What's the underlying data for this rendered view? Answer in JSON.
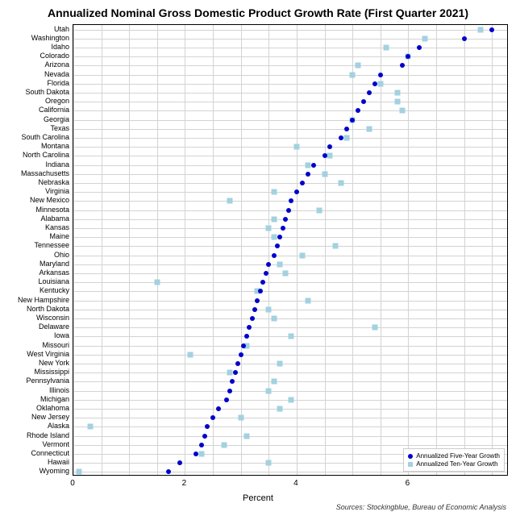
{
  "chart": {
    "title": "Annualized Nominal Gross Domestic Product Growth Rate (First Quarter 2021)",
    "xlabel": "Percent",
    "xlim": [
      0,
      7.8
    ],
    "xticks": [
      0,
      2,
      4,
      6
    ],
    "xtick_labels": [
      "0",
      "2",
      "4",
      "6"
    ],
    "xminor": [
      0,
      0.5,
      1,
      1.5,
      2,
      2.5,
      3,
      3.5,
      4,
      4.5,
      5,
      5.5,
      6,
      6.5,
      7,
      7.5
    ],
    "background_color": "#ffffff",
    "grid_color": "#d3d3d3",
    "border_color": "#000000",
    "five_year_color": "#0000cc",
    "ten_year_color": "#a3d1e0",
    "marker_five_size": 6,
    "marker_ten_size": 7,
    "legend": {
      "five": "Annualized Five-Year Growth",
      "ten": "Annualized Ten-Year Growth"
    },
    "sources": "Sources: Stockingblue, Bureau of Economic Analysis",
    "states": [
      {
        "name": "Utah",
        "five": 7.5,
        "ten": 7.3
      },
      {
        "name": "Washington",
        "five": 7.0,
        "ten": 6.3
      },
      {
        "name": "Idaho",
        "five": 6.2,
        "ten": 5.6
      },
      {
        "name": "Colorado",
        "five": 6.0,
        "ten": 6.0
      },
      {
        "name": "Arizona",
        "five": 5.9,
        "ten": 5.1
      },
      {
        "name": "Nevada",
        "five": 5.5,
        "ten": 5.0
      },
      {
        "name": "Florida",
        "five": 5.4,
        "ten": 5.5
      },
      {
        "name": "South Dakota",
        "five": 5.3,
        "ten": 5.8
      },
      {
        "name": "Oregon",
        "five": 5.2,
        "ten": 5.8
      },
      {
        "name": "California",
        "five": 5.1,
        "ten": 5.9
      },
      {
        "name": "Georgia",
        "five": 5.0,
        "ten": 5.0
      },
      {
        "name": "Texas",
        "five": 4.9,
        "ten": 5.3
      },
      {
        "name": "South Carolina",
        "five": 4.8,
        "ten": 4.9
      },
      {
        "name": "Montana",
        "five": 4.6,
        "ten": 4.0
      },
      {
        "name": "North Carolina",
        "five": 4.5,
        "ten": 4.6
      },
      {
        "name": "Indiana",
        "five": 4.3,
        "ten": 4.2
      },
      {
        "name": "Massachusetts",
        "five": 4.2,
        "ten": 4.5
      },
      {
        "name": "Nebraska",
        "five": 4.1,
        "ten": 4.8
      },
      {
        "name": "Virginia",
        "five": 4.0,
        "ten": 3.6
      },
      {
        "name": "New Mexico",
        "five": 3.9,
        "ten": 2.8
      },
      {
        "name": "Minnesota",
        "five": 3.85,
        "ten": 4.4
      },
      {
        "name": "Alabama",
        "five": 3.8,
        "ten": 3.6
      },
      {
        "name": "Kansas",
        "five": 3.75,
        "ten": 3.5
      },
      {
        "name": "Maine",
        "five": 3.7,
        "ten": 3.6
      },
      {
        "name": "Tennessee",
        "five": 3.65,
        "ten": 4.7
      },
      {
        "name": "Ohio",
        "five": 3.6,
        "ten": 4.1
      },
      {
        "name": "Maryland",
        "five": 3.5,
        "ten": 3.7
      },
      {
        "name": "Arkansas",
        "five": 3.45,
        "ten": 3.8
      },
      {
        "name": "Louisiana",
        "five": 3.4,
        "ten": 1.5
      },
      {
        "name": "Kentucky",
        "five": 3.35,
        "ten": 3.3
      },
      {
        "name": "New Hampshire",
        "five": 3.3,
        "ten": 4.2
      },
      {
        "name": "North Dakota",
        "five": 3.25,
        "ten": 3.5
      },
      {
        "name": "Wisconsin",
        "five": 3.2,
        "ten": 3.6
      },
      {
        "name": "Delaware",
        "five": 3.15,
        "ten": 5.4
      },
      {
        "name": "Iowa",
        "five": 3.1,
        "ten": 3.9
      },
      {
        "name": "Missouri",
        "five": 3.05,
        "ten": 3.1
      },
      {
        "name": "West Virginia",
        "five": 3.0,
        "ten": 2.1
      },
      {
        "name": "New York",
        "five": 2.95,
        "ten": 3.7
      },
      {
        "name": "Mississippi",
        "five": 2.9,
        "ten": 2.8
      },
      {
        "name": "Pennsylvania",
        "five": 2.85,
        "ten": 3.6
      },
      {
        "name": "Illinois",
        "five": 2.8,
        "ten": 3.5
      },
      {
        "name": "Michigan",
        "five": 2.75,
        "ten": 3.9
      },
      {
        "name": "Oklahoma",
        "five": 2.6,
        "ten": 3.7
      },
      {
        "name": "New Jersey",
        "five": 2.5,
        "ten": 3.0
      },
      {
        "name": "Alaska",
        "five": 2.4,
        "ten": 0.3
      },
      {
        "name": "Rhode Island",
        "five": 2.35,
        "ten": 3.1
      },
      {
        "name": "Vermont",
        "five": 2.3,
        "ten": 2.7
      },
      {
        "name": "Connecticut",
        "five": 2.2,
        "ten": 2.3
      },
      {
        "name": "Hawaii",
        "five": 1.9,
        "ten": 3.5
      },
      {
        "name": "Wyoming",
        "five": 1.7,
        "ten": 0.1
      }
    ]
  }
}
